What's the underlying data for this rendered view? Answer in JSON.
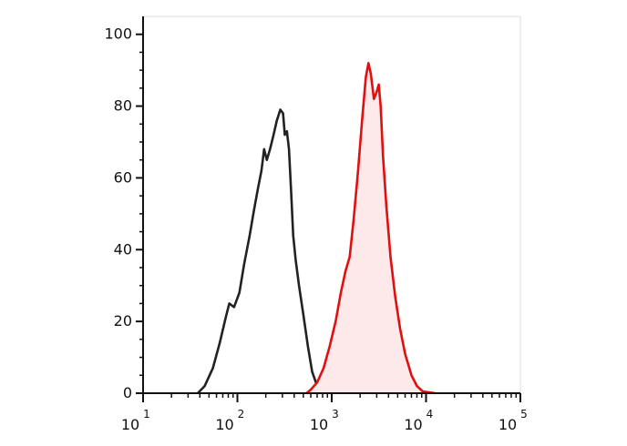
{
  "chart_data": {
    "type": "area",
    "title": "",
    "xlabel": "",
    "ylabel": "",
    "x_scale": "log",
    "xlim": [
      10,
      100000
    ],
    "ylim": [
      0,
      105
    ],
    "grid": false,
    "legend": "none",
    "x_ticks": [
      {
        "base": "10",
        "exp": "1",
        "value": 10
      },
      {
        "base": "10",
        "exp": "2",
        "value": 100
      },
      {
        "base": "10",
        "exp": "3",
        "value": 1000
      },
      {
        "base": "10",
        "exp": "4",
        "value": 10000
      },
      {
        "base": "10",
        "exp": "5",
        "value": 100000
      }
    ],
    "y_ticks": [
      {
        "label": "0",
        "value": 0
      },
      {
        "label": "20",
        "value": 20
      },
      {
        "label": "40",
        "value": 40
      },
      {
        "label": "60",
        "value": 60
      },
      {
        "label": "80",
        "value": 80
      },
      {
        "label": "100",
        "value": 100
      }
    ],
    "series": [
      {
        "color": "#222222",
        "fill": "none",
        "x": [
          38,
          45,
          55,
          65,
          75,
          82,
          92,
          105,
          118,
          135,
          150,
          165,
          180,
          192,
          205,
          222,
          242,
          262,
          285,
          305,
          318,
          335,
          352,
          370,
          390,
          415,
          450,
          500,
          560,
          620,
          700,
          800,
          900,
          1000
        ],
        "y": [
          0,
          2,
          7,
          14,
          21,
          25,
          24,
          28,
          36,
          44,
          51,
          57,
          62,
          68,
          65,
          68,
          72,
          76,
          79,
          78,
          72,
          73,
          68,
          57,
          44,
          37,
          30,
          22,
          13,
          6,
          2,
          0.5,
          0.2,
          0
        ]
      },
      {
        "color": "#e01010",
        "fill": "#fde8ea",
        "x": [
          540,
          600,
          700,
          820,
          950,
          1100,
          1250,
          1400,
          1550,
          1700,
          1900,
          2100,
          2300,
          2450,
          2600,
          2800,
          3000,
          3150,
          3300,
          3500,
          3800,
          4200,
          4700,
          5300,
          6000,
          7000,
          8000,
          9200,
          11000,
          12500
        ],
        "y": [
          0,
          1,
          3,
          7,
          13,
          20,
          28,
          34,
          38,
          48,
          62,
          76,
          88,
          92,
          89,
          82,
          84,
          86,
          80,
          66,
          52,
          38,
          27,
          18,
          11,
          5,
          2,
          0.5,
          0.2,
          0
        ]
      }
    ]
  }
}
